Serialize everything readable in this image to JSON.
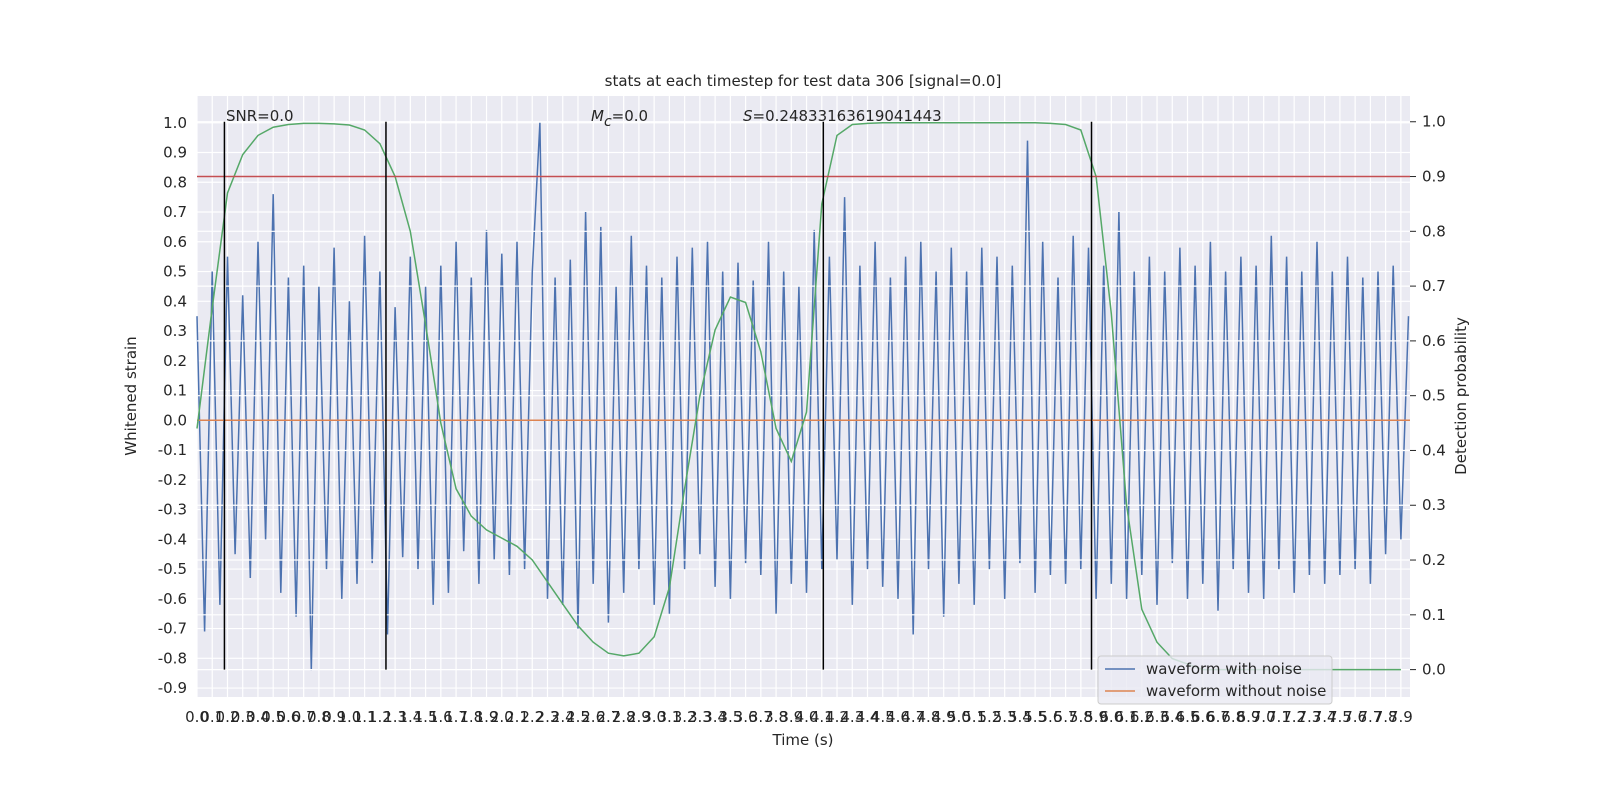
{
  "chart_data": {
    "type": "line",
    "title": "stats at each timestep for test data 306 [signal=0.0]",
    "xlabel": "Time (s)",
    "ylabel": "Whitened strain",
    "y2label": "Detection probability",
    "xlim": [
      0,
      7.96
    ],
    "ylim": [
      -0.93,
      1.09
    ],
    "y2lim": [
      -0.05,
      1.047
    ],
    "grid": true,
    "legend": "lower right",
    "xticks": [
      {
        "value": 0,
        "label": "0.0"
      },
      0.1,
      0.2,
      0.3,
      0.4,
      0.5,
      0.6,
      0.7,
      0.8,
      0.9,
      {
        "value": 1,
        "label": "1.0"
      },
      1.1,
      1.2,
      1.3,
      1.4,
      1.5,
      1.6,
      1.7,
      1.8,
      1.9,
      {
        "value": 2,
        "label": "2.0"
      },
      2.1,
      2.2,
      2.3,
      2.4,
      2.5,
      2.6,
      2.7,
      2.8,
      2.9,
      {
        "value": 3,
        "label": "3.0"
      },
      3.1,
      3.2,
      3.3,
      3.4,
      3.5,
      3.6,
      3.7,
      3.8,
      3.9,
      {
        "value": 4,
        "label": "4.0"
      },
      4.1,
      4.2,
      4.3,
      4.4,
      4.5,
      4.6,
      4.7,
      4.8,
      4.9,
      {
        "value": 5,
        "label": "5.0"
      },
      5.1,
      5.2,
      5.3,
      5.4,
      5.5,
      5.6,
      5.7,
      5.8,
      5.9,
      {
        "value": 6,
        "label": "6.0"
      },
      6.1,
      6.2,
      6.3,
      6.4,
      6.5,
      6.6,
      6.7,
      6.8,
      6.9,
      {
        "value": 7,
        "label": "7.0"
      },
      7.1,
      7.2,
      7.3,
      7.4,
      7.5,
      7.6,
      7.7,
      7.8,
      7.9
    ],
    "yticks": [
      -0.9,
      -0.8,
      -0.7,
      -0.6,
      -0.5,
      -0.4,
      -0.3,
      -0.2,
      -0.1,
      {
        "value": 0,
        "label": "0.0"
      },
      0.1,
      0.2,
      0.3,
      0.4,
      0.5,
      0.6,
      0.7,
      0.8,
      0.9,
      {
        "value": 1,
        "label": "1.0"
      }
    ],
    "y2ticks": [
      {
        "value": 0,
        "label": "0.0"
      },
      0.1,
      0.2,
      0.3,
      0.4,
      0.5,
      0.6,
      0.7,
      0.8,
      0.9,
      {
        "value": 1,
        "label": "1.0"
      }
    ],
    "series": [
      {
        "name": "waveform with noise",
        "color": "#4c72b0",
        "x": [
          0,
          0.05,
          0.1,
          0.15,
          0.2,
          0.25,
          0.3,
          0.35,
          0.4,
          0.45,
          0.5,
          0.55,
          0.6,
          0.65,
          0.7,
          0.75,
          0.8,
          0.85,
          0.9,
          0.95,
          1,
          1.05,
          1.1,
          1.15,
          1.2,
          1.25,
          1.3,
          1.35,
          1.4,
          1.45,
          1.5,
          1.55,
          1.6,
          1.65,
          1.7,
          1.75,
          1.8,
          1.85,
          1.9,
          1.95,
          2,
          2.05,
          2.1,
          2.15,
          2.2,
          2.25,
          2.3,
          2.35,
          2.4,
          2.45,
          2.5,
          2.55,
          2.6,
          2.65,
          2.7,
          2.75,
          2.8,
          2.85,
          2.9,
          2.95,
          3,
          3.05,
          3.1,
          3.15,
          3.2,
          3.25,
          3.3,
          3.35,
          3.4,
          3.45,
          3.5,
          3.55,
          3.6,
          3.65,
          3.7,
          3.75,
          3.8,
          3.85,
          3.9,
          3.95,
          4,
          4.05,
          4.1,
          4.15,
          4.2,
          4.25,
          4.3,
          4.35,
          4.4,
          4.45,
          4.5,
          4.55,
          4.6,
          4.65,
          4.7,
          4.75,
          4.8,
          4.85,
          4.9,
          4.95,
          5,
          5.05,
          5.1,
          5.15,
          5.2,
          5.25,
          5.3,
          5.35,
          5.4,
          5.45,
          5.5,
          5.55,
          5.6,
          5.65,
          5.7,
          5.75,
          5.8,
          5.85,
          5.9,
          5.95,
          6,
          6.05,
          6.1,
          6.15,
          6.2,
          6.25,
          6.3,
          6.35,
          6.4,
          6.45,
          6.5,
          6.55,
          6.6,
          6.65,
          6.7,
          6.75,
          6.8,
          6.85,
          6.9,
          6.95,
          7,
          7.05,
          7.1,
          7.15,
          7.2,
          7.25,
          7.3,
          7.35,
          7.4,
          7.45,
          7.5,
          7.55,
          7.6,
          7.65,
          7.7,
          7.75,
          7.8,
          7.85,
          7.9,
          7.95
        ],
        "values": [
          0.35,
          -0.71,
          0.5,
          -0.62,
          0.55,
          -0.45,
          0.42,
          -0.53,
          0.6,
          -0.4,
          0.76,
          -0.58,
          0.48,
          -0.66,
          0.52,
          -0.84,
          0.45,
          -0.5,
          0.58,
          -0.6,
          0.4,
          -0.55,
          0.62,
          -0.48,
          0.5,
          -0.72,
          0.38,
          -0.46,
          0.55,
          -0.5,
          0.45,
          -0.62,
          0.52,
          -0.58,
          0.6,
          -0.44,
          0.48,
          -0.55,
          0.64,
          -0.47,
          0.56,
          -0.52,
          0.6,
          -0.5,
          0.5,
          1.0,
          -0.6,
          0.48,
          -0.62,
          0.54,
          -0.7,
          0.7,
          -0.55,
          0.65,
          -0.68,
          0.45,
          -0.58,
          0.62,
          -0.5,
          0.52,
          -0.62,
          0.48,
          -0.65,
          0.55,
          -0.5,
          0.58,
          -0.45,
          0.6,
          -0.56,
          0.5,
          -0.6,
          0.53,
          -0.48,
          0.47,
          -0.52,
          0.6,
          -0.65,
          0.5,
          -0.55,
          0.45,
          -0.58,
          0.64,
          -0.5,
          0.55,
          -0.47,
          0.75,
          -0.62,
          0.52,
          -0.5,
          0.6,
          -0.56,
          0.48,
          -0.6,
          0.55,
          -0.72,
          0.6,
          -0.5,
          0.5,
          -0.66,
          0.58,
          -0.55,
          0.5,
          -0.62,
          0.58,
          -0.5,
          0.55,
          -0.6,
          0.52,
          -0.48,
          0.94,
          -0.58,
          0.6,
          -0.52,
          0.48,
          -0.55,
          0.62,
          -0.5,
          0.58,
          -0.6,
          0.52,
          -0.55,
          0.7,
          -0.6,
          0.5,
          -0.52,
          0.55,
          -0.62,
          0.5,
          -0.48,
          0.58,
          -0.6,
          0.52,
          -0.55,
          0.6,
          -0.64,
          0.5,
          -0.5,
          0.55,
          -0.58,
          0.52,
          -0.6,
          0.62,
          -0.5,
          0.55,
          -0.58,
          0.5,
          -0.52,
          0.6,
          -0.55,
          0.5,
          -0.52,
          0.55,
          -0.5,
          0.48,
          -0.55,
          0.5,
          -0.45,
          0.52,
          -0.4,
          0.35
        ]
      },
      {
        "name": "waveform without noise",
        "color": "#dd8452",
        "x": [
          0,
          7.96
        ],
        "values": [
          0,
          0
        ]
      }
    ],
    "detection_probability": {
      "color": "#55a868",
      "axis": "y2",
      "x": [
        0,
        0.1,
        0.2,
        0.3,
        0.4,
        0.5,
        0.6,
        0.7,
        0.8,
        0.9,
        1,
        1.1,
        1.2,
        1.3,
        1.4,
        1.5,
        1.6,
        1.7,
        1.8,
        1.9,
        2,
        2.1,
        2.2,
        2.3,
        2.4,
        2.5,
        2.6,
        2.7,
        2.8,
        2.9,
        3,
        3.1,
        3.2,
        3.3,
        3.4,
        3.5,
        3.6,
        3.7,
        3.8,
        3.9,
        4,
        4.1,
        4.2,
        4.3,
        4.4,
        4.5,
        4.6,
        4.7,
        4.8,
        4.9,
        5,
        5.1,
        5.2,
        5.3,
        5.4,
        5.5,
        5.6,
        5.7,
        5.8,
        5.9,
        6,
        6.1,
        6.2,
        6.3,
        6.4,
        6.5,
        6.6,
        6.7,
        6.8,
        6.9,
        7,
        7.1,
        7.2,
        7.3,
        7.4,
        7.5,
        7.6,
        7.7,
        7.8,
        7.9
      ],
      "values": [
        0.44,
        0.66,
        0.87,
        0.94,
        0.975,
        0.99,
        0.995,
        0.997,
        0.997,
        0.996,
        0.994,
        0.985,
        0.96,
        0.9,
        0.8,
        0.63,
        0.45,
        0.33,
        0.28,
        0.255,
        0.24,
        0.225,
        0.2,
        0.16,
        0.12,
        0.08,
        0.05,
        0.03,
        0.025,
        0.03,
        0.06,
        0.15,
        0.33,
        0.5,
        0.62,
        0.68,
        0.67,
        0.58,
        0.44,
        0.38,
        0.47,
        0.85,
        0.975,
        0.995,
        0.997,
        0.998,
        0.998,
        0.998,
        0.998,
        0.998,
        0.998,
        0.998,
        0.998,
        0.998,
        0.998,
        0.998,
        0.997,
        0.995,
        0.985,
        0.9,
        0.65,
        0.3,
        0.11,
        0.05,
        0.02,
        0.01,
        0,
        0,
        0,
        0,
        0,
        0,
        0,
        0,
        0,
        0,
        0,
        0,
        0,
        0
      ]
    },
    "threshold": {
      "y": 0.9,
      "axis": "y2",
      "color": "#c44e52"
    },
    "vlines": {
      "x": [
        0.18,
        1.24,
        4.11,
        5.87
      ],
      "ylim": [
        0,
        1
      ],
      "axis": "y2",
      "color": "#000000"
    },
    "annotations": [
      [
        {
          "text": "SNR=0.0"
        }
      ],
      [
        {
          "text": "M",
          "italic": true
        },
        {
          "text": "c",
          "italic": true,
          "sub": true
        },
        {
          "text": "=0.0"
        }
      ],
      [
        {
          "text": "S",
          "italic": true
        },
        {
          "text": "=0.24833163619041443"
        }
      ]
    ]
  }
}
